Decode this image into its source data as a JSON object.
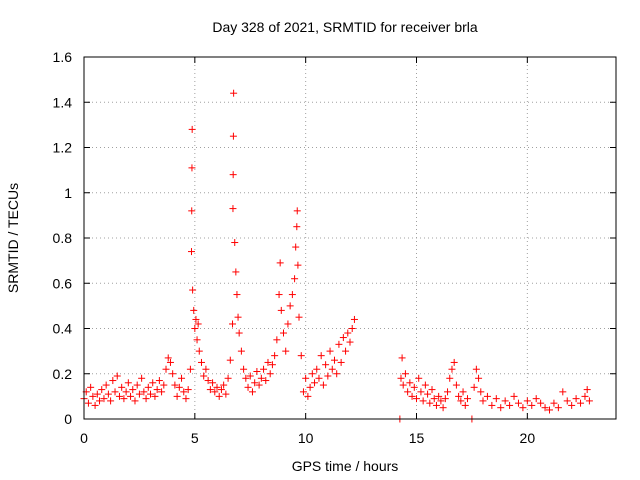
{
  "chart_data": {
    "type": "scatter",
    "title": "Day 328 of 2021, SRMTID for receiver brla",
    "xlabel": "GPS time / hours",
    "ylabel": "SRMTID / TECUs",
    "xlim": [
      0,
      24
    ],
    "ylim": [
      0,
      1.6
    ],
    "x_ticks": [
      0,
      5,
      10,
      15,
      20
    ],
    "x_tick_labels": [
      "0",
      "5",
      "10",
      "15",
      "20"
    ],
    "y_ticks": [
      0,
      0.2,
      0.4,
      0.6,
      0.8,
      1.0,
      1.2,
      1.4,
      1.6
    ],
    "y_tick_labels": [
      "0",
      "0.2",
      "0.4",
      "0.6",
      "0.8",
      "1",
      "1.2",
      "1.4",
      "1.6"
    ],
    "grid": true,
    "marker": "+",
    "color": "#ff0000",
    "series": [
      {
        "name": "SRMTID",
        "points": [
          [
            0.0,
            0.09
          ],
          [
            0.1,
            0.12
          ],
          [
            0.2,
            0.07
          ],
          [
            0.3,
            0.14
          ],
          [
            0.4,
            0.1
          ],
          [
            0.5,
            0.06
          ],
          [
            0.6,
            0.11
          ],
          [
            0.7,
            0.08
          ],
          [
            0.8,
            0.13
          ],
          [
            0.9,
            0.09
          ],
          [
            1.0,
            0.15
          ],
          [
            1.1,
            0.11
          ],
          [
            1.2,
            0.08
          ],
          [
            1.3,
            0.17
          ],
          [
            1.4,
            0.12
          ],
          [
            1.5,
            0.19
          ],
          [
            1.6,
            0.1
          ],
          [
            1.7,
            0.14
          ],
          [
            1.8,
            0.09
          ],
          [
            1.9,
            0.12
          ],
          [
            2.0,
            0.16
          ],
          [
            2.1,
            0.1
          ],
          [
            2.2,
            0.13
          ],
          [
            2.3,
            0.08
          ],
          [
            2.4,
            0.15
          ],
          [
            2.5,
            0.11
          ],
          [
            2.6,
            0.18
          ],
          [
            2.7,
            0.12
          ],
          [
            2.8,
            0.09
          ],
          [
            2.9,
            0.14
          ],
          [
            3.0,
            0.11
          ],
          [
            3.1,
            0.16
          ],
          [
            3.2,
            0.1
          ],
          [
            3.3,
            0.13
          ],
          [
            3.4,
            0.17
          ],
          [
            3.5,
            0.12
          ],
          [
            3.6,
            0.15
          ],
          [
            3.7,
            0.22
          ],
          [
            3.8,
            0.27
          ],
          [
            3.9,
            0.25
          ],
          [
            4.0,
            0.2
          ],
          [
            4.1,
            0.15
          ],
          [
            4.2,
            0.1
          ],
          [
            4.3,
            0.14
          ],
          [
            4.4,
            0.18
          ],
          [
            4.5,
            0.12
          ],
          [
            4.6,
            0.09
          ],
          [
            4.7,
            0.13
          ],
          [
            4.8,
            0.22
          ],
          [
            4.85,
            0.74
          ],
          [
            4.86,
            0.92
          ],
          [
            4.87,
            1.11
          ],
          [
            4.88,
            1.28
          ],
          [
            4.9,
            0.57
          ],
          [
            4.95,
            0.48
          ],
          [
            5.0,
            0.4
          ],
          [
            5.05,
            0.44
          ],
          [
            5.1,
            0.35
          ],
          [
            5.15,
            0.42
          ],
          [
            5.2,
            0.3
          ],
          [
            5.3,
            0.25
          ],
          [
            5.4,
            0.19
          ],
          [
            5.5,
            0.22
          ],
          [
            5.6,
            0.17
          ],
          [
            5.7,
            0.13
          ],
          [
            5.8,
            0.16
          ],
          [
            5.9,
            0.12
          ],
          [
            6.0,
            0.14
          ],
          [
            6.1,
            0.1
          ],
          [
            6.2,
            0.13
          ],
          [
            6.3,
            0.15
          ],
          [
            6.4,
            0.11
          ],
          [
            6.5,
            0.18
          ],
          [
            6.6,
            0.26
          ],
          [
            6.7,
            0.42
          ],
          [
            6.72,
            0.93
          ],
          [
            6.73,
            1.08
          ],
          [
            6.74,
            1.25
          ],
          [
            6.75,
            1.44
          ],
          [
            6.8,
            0.78
          ],
          [
            6.85,
            0.65
          ],
          [
            6.9,
            0.55
          ],
          [
            6.95,
            0.45
          ],
          [
            7.0,
            0.38
          ],
          [
            7.1,
            0.3
          ],
          [
            7.2,
            0.22
          ],
          [
            7.3,
            0.18
          ],
          [
            7.4,
            0.14
          ],
          [
            7.5,
            0.19
          ],
          [
            7.6,
            0.12
          ],
          [
            7.7,
            0.16
          ],
          [
            7.8,
            0.21
          ],
          [
            7.9,
            0.15
          ],
          [
            8.0,
            0.18
          ],
          [
            8.1,
            0.22
          ],
          [
            8.2,
            0.17
          ],
          [
            8.3,
            0.25
          ],
          [
            8.4,
            0.2
          ],
          [
            8.5,
            0.24
          ],
          [
            8.6,
            0.28
          ],
          [
            8.7,
            0.35
          ],
          [
            8.8,
            0.55
          ],
          [
            8.85,
            0.69
          ],
          [
            8.9,
            0.48
          ],
          [
            9.0,
            0.38
          ],
          [
            9.1,
            0.3
          ],
          [
            9.2,
            0.42
          ],
          [
            9.3,
            0.5
          ],
          [
            9.4,
            0.55
          ],
          [
            9.5,
            0.62
          ],
          [
            9.55,
            0.76
          ],
          [
            9.6,
            0.85
          ],
          [
            9.62,
            0.92
          ],
          [
            9.65,
            0.68
          ],
          [
            9.7,
            0.45
          ],
          [
            9.8,
            0.28
          ],
          [
            9.9,
            0.12
          ],
          [
            10.0,
            0.18
          ],
          [
            10.1,
            0.1
          ],
          [
            10.2,
            0.14
          ],
          [
            10.3,
            0.2
          ],
          [
            10.4,
            0.16
          ],
          [
            10.5,
            0.22
          ],
          [
            10.6,
            0.18
          ],
          [
            10.7,
            0.28
          ],
          [
            10.8,
            0.15
          ],
          [
            10.9,
            0.24
          ],
          [
            11.0,
            0.19
          ],
          [
            11.1,
            0.3
          ],
          [
            11.2,
            0.22
          ],
          [
            11.3,
            0.26
          ],
          [
            11.4,
            0.2
          ],
          [
            11.5,
            0.33
          ],
          [
            11.6,
            0.25
          ],
          [
            11.7,
            0.36
          ],
          [
            11.8,
            0.3
          ],
          [
            11.9,
            0.38
          ],
          [
            12.0,
            0.34
          ],
          [
            12.1,
            0.4
          ],
          [
            12.2,
            0.44
          ],
          [
            14.25,
            0.0
          ],
          [
            14.3,
            0.18
          ],
          [
            14.35,
            0.27
          ],
          [
            14.4,
            0.15
          ],
          [
            14.5,
            0.2
          ],
          [
            14.6,
            0.12
          ],
          [
            14.7,
            0.16
          ],
          [
            14.8,
            0.1
          ],
          [
            14.9,
            0.14
          ],
          [
            15.0,
            0.09
          ],
          [
            15.1,
            0.18
          ],
          [
            15.2,
            0.12
          ],
          [
            15.3,
            0.08
          ],
          [
            15.4,
            0.15
          ],
          [
            15.5,
            0.11
          ],
          [
            15.6,
            0.07
          ],
          [
            15.7,
            0.13
          ],
          [
            15.8,
            0.09
          ],
          [
            15.9,
            0.06
          ],
          [
            16.0,
            0.1
          ],
          [
            16.1,
            0.08
          ],
          [
            16.2,
            0.05
          ],
          [
            16.3,
            0.09
          ],
          [
            16.4,
            0.12
          ],
          [
            16.5,
            0.18
          ],
          [
            16.6,
            0.22
          ],
          [
            16.7,
            0.25
          ],
          [
            16.8,
            0.15
          ],
          [
            16.9,
            0.1
          ],
          [
            17.0,
            0.08
          ],
          [
            17.1,
            0.12
          ],
          [
            17.2,
            0.06
          ],
          [
            17.3,
            0.09
          ],
          [
            17.5,
            0.0
          ],
          [
            17.6,
            0.14
          ],
          [
            17.7,
            0.22
          ],
          [
            17.8,
            0.18
          ],
          [
            17.9,
            0.12
          ],
          [
            18.0,
            0.08
          ],
          [
            18.2,
            0.1
          ],
          [
            18.4,
            0.06
          ],
          [
            18.6,
            0.09
          ],
          [
            18.8,
            0.05
          ],
          [
            19.0,
            0.08
          ],
          [
            19.2,
            0.06
          ],
          [
            19.4,
            0.1
          ],
          [
            19.6,
            0.07
          ],
          [
            19.8,
            0.05
          ],
          [
            20.0,
            0.08
          ],
          [
            20.2,
            0.06
          ],
          [
            20.4,
            0.09
          ],
          [
            20.6,
            0.07
          ],
          [
            20.8,
            0.05
          ],
          [
            21.0,
            0.04
          ],
          [
            21.2,
            0.07
          ],
          [
            21.4,
            0.05
          ],
          [
            21.6,
            0.12
          ],
          [
            21.8,
            0.08
          ],
          [
            22.0,
            0.06
          ],
          [
            22.2,
            0.09
          ],
          [
            22.4,
            0.07
          ],
          [
            22.6,
            0.1
          ],
          [
            22.7,
            0.13
          ],
          [
            22.8,
            0.08
          ]
        ]
      }
    ]
  }
}
